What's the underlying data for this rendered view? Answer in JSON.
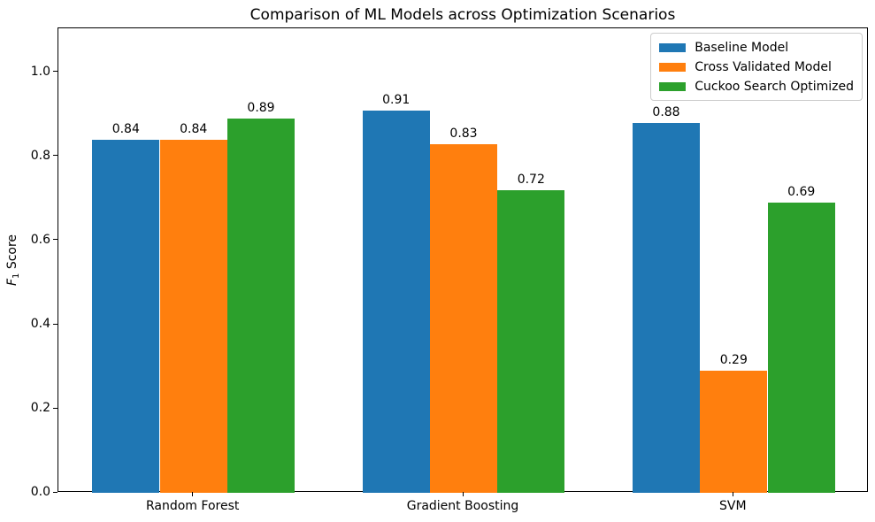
{
  "figure": {
    "ylabel_f": "F",
    "ylabel_sub": "1",
    "ylabel_rest": " Score"
  },
  "chart_data": {
    "type": "bar",
    "title": "Comparison of ML Models across Optimization Scenarios",
    "xlabel": "",
    "ylabel": "F1 Score",
    "categories": [
      "Random Forest",
      "Gradient Boosting",
      "SVM"
    ],
    "series": [
      {
        "name": "Baseline Model",
        "color": "#1f77b4",
        "values": [
          0.84,
          0.91,
          0.88
        ]
      },
      {
        "name": "Cross Validated Model",
        "color": "#ff7f0e",
        "values": [
          0.84,
          0.83,
          0.29
        ]
      },
      {
        "name": "Cuckoo Search Optimized",
        "color": "#2ca02c",
        "values": [
          0.89,
          0.72,
          0.69
        ]
      }
    ],
    "bar_value_labels": true,
    "value_label_format": "2dp",
    "ylim": [
      0,
      1.105
    ],
    "yticks": [
      0.0,
      0.2,
      0.4,
      0.6,
      0.8,
      1.0
    ],
    "ytick_format": "1dp",
    "grid": false,
    "legend_position": "upper right",
    "bar_group_width_fraction": 0.25
  }
}
